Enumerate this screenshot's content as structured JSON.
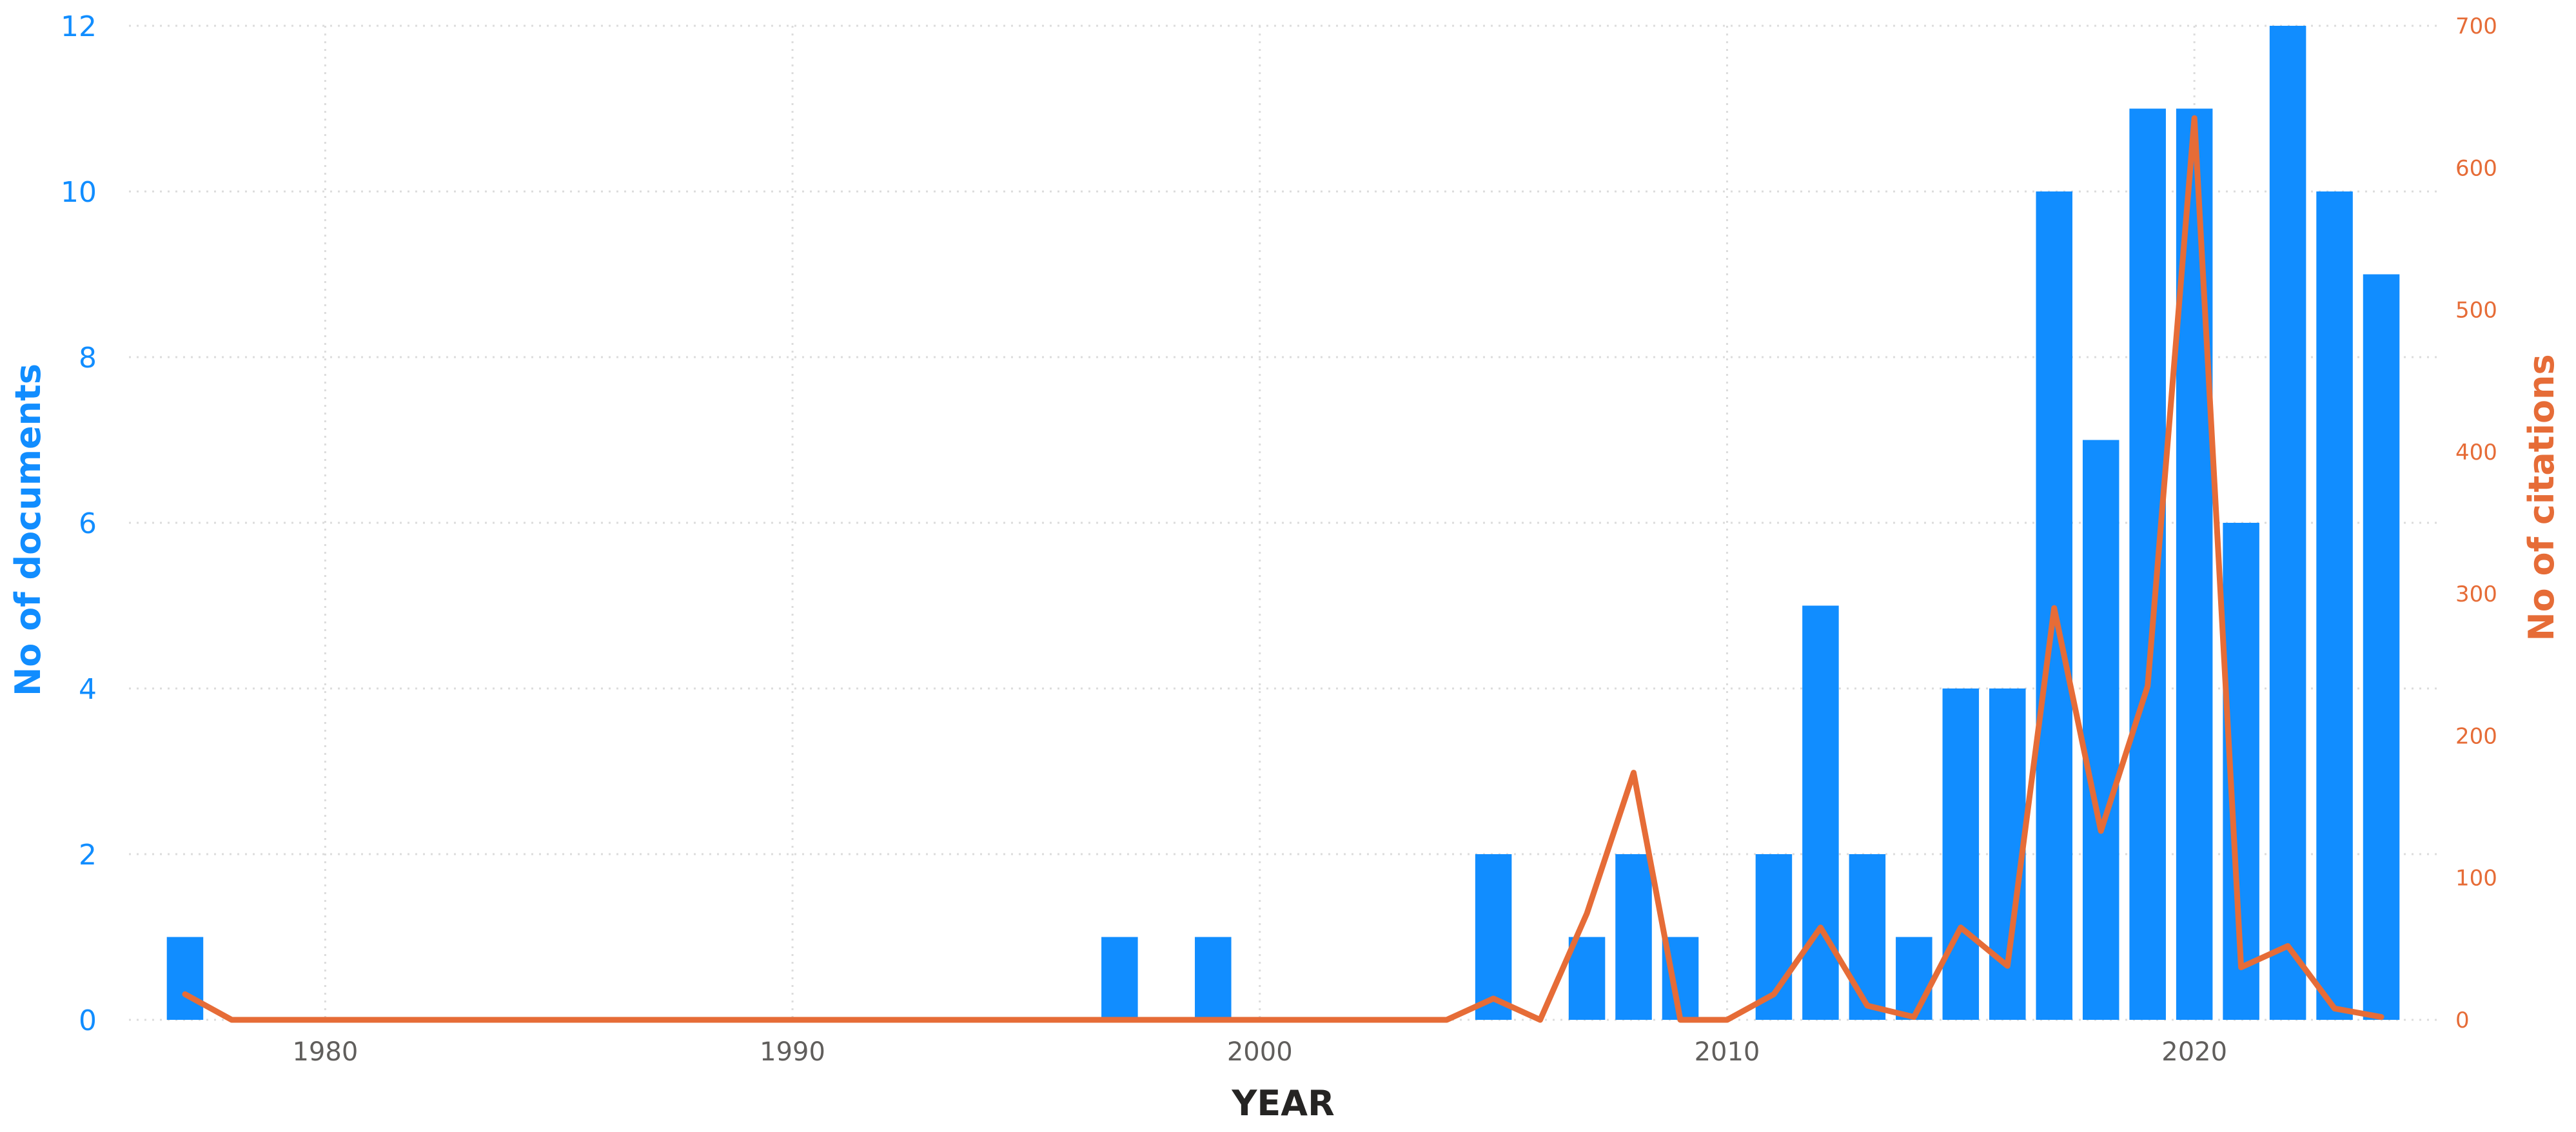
{
  "colors": {
    "documents": "#118DFF",
    "citations": "#E66C37",
    "left_axis_text": "#118DFF",
    "right_axis_text": "#E66C37",
    "grid": "#DCDCDC",
    "x_axis_text": "#605E5C",
    "x_title": "#252423"
  },
  "chart_data": {
    "type": "bar",
    "combo": "bar + line (dual axis)",
    "xlabel": "YEAR",
    "ylabel": "No of documents",
    "y2label": "No of citations",
    "xlim": [
      1975.5,
      1976.5
    ],
    "ylim": [
      0,
      12
    ],
    "y2lim": [
      0,
      700
    ],
    "x_ticks": [
      1980,
      1990,
      2000,
      2010,
      2020
    ],
    "y_ticks": [
      0,
      2,
      4,
      6,
      8,
      10,
      12
    ],
    "y2_ticks": [
      0,
      100,
      200,
      300,
      400,
      500,
      600,
      700
    ],
    "grid": true,
    "series": [
      {
        "name": "No of documents",
        "type": "bar",
        "axis": "left",
        "x": [
          1977,
          1997,
          1999,
          2005,
          2007,
          2008,
          2009,
          2011,
          2012,
          2013,
          2014,
          2015,
          2016,
          2017,
          2018,
          2019,
          2020,
          2021,
          2022,
          2023,
          2024
        ],
        "values": [
          1,
          1,
          1,
          2,
          1,
          2,
          1,
          2,
          5,
          2,
          1,
          4,
          4,
          10,
          7,
          11,
          11,
          6,
          12,
          10,
          9
        ]
      },
      {
        "name": "No of citations",
        "type": "line",
        "axis": "right",
        "x": [
          1977,
          1978,
          1979,
          1980,
          1981,
          1982,
          1983,
          1984,
          1985,
          1986,
          1987,
          1988,
          1989,
          1990,
          1991,
          1992,
          1993,
          1994,
          1995,
          1996,
          1997,
          1998,
          1999,
          2000,
          2001,
          2002,
          2003,
          2004,
          2005,
          2006,
          2007,
          2008,
          2009,
          2010,
          2011,
          2012,
          2013,
          2014,
          2015,
          2016,
          2017,
          2018,
          2019,
          2020,
          2021,
          2022,
          2023,
          2024
        ],
        "values": [
          18,
          0,
          0,
          0,
          0,
          0,
          0,
          0,
          0,
          0,
          0,
          0,
          0,
          0,
          0,
          0,
          0,
          0,
          0,
          0,
          0,
          0,
          0,
          0,
          0,
          0,
          0,
          0,
          15,
          0,
          75,
          174,
          0,
          0,
          18,
          65,
          10,
          2,
          65,
          38,
          290,
          133,
          235,
          635,
          37,
          52,
          8,
          2
        ]
      }
    ]
  }
}
